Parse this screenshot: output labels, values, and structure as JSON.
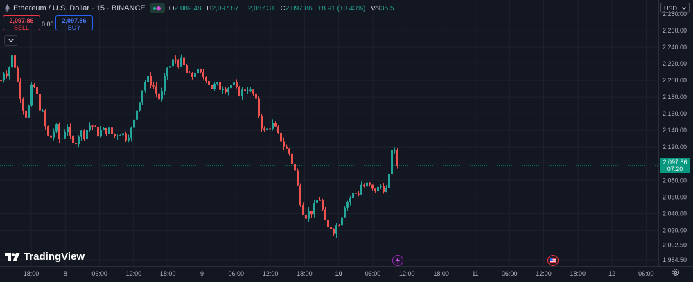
{
  "header": {
    "symbol": "Ethereum / U.S. Dollar · 15 · BINANCE",
    "o_label": "O",
    "o_value": "2,089.48",
    "h_label": "H",
    "h_value": "2,097.87",
    "l_label": "L",
    "l_value": "2,087.31",
    "c_label": "C",
    "c_value": "2,097.86",
    "change": "+8.91 (+0.43%)",
    "vol_label": "Vol",
    "vol_value": "35.5"
  },
  "trade": {
    "sell_price": "2,097.86",
    "sell_label": "SELL",
    "spread": "0.00",
    "buy_price": "2,097.86",
    "buy_label": "BUY"
  },
  "currency": "USD",
  "logo": "TradingView",
  "price_tag": {
    "price": "2,097.86",
    "countdown": "07:20"
  },
  "colors": {
    "up": "#26a69a",
    "down": "#ef5350",
    "background": "#131722",
    "accent": "#089981"
  },
  "icons": {
    "eth": "ethereum-icon",
    "tv": "tradingview-logo-icon",
    "settings": "gear-icon"
  },
  "chart_data": {
    "type": "candlestick",
    "interval": "15",
    "y_ticks": [
      2280,
      2260,
      2240,
      2220,
      2200,
      2180,
      2160,
      2140,
      2120,
      2100,
      2080,
      2060,
      2040,
      2020,
      2002.5,
      1984.5
    ],
    "y_tick_labels": [
      "2,280.00",
      "2,260.00",
      "2,240.00",
      "2,220.00",
      "2,200.00",
      "2,180.00",
      "2,160.00",
      "2,140.00",
      "2,120.00",
      "2,100.00",
      "2,080.00",
      "2,060.00",
      "2,040.00",
      "2,020.00",
      "2,002.50",
      "1,984.50"
    ],
    "x_tick_labels": [
      "18:00",
      "8",
      "06:00",
      "12:00",
      "18:00",
      "9",
      "06:00",
      "12:00",
      "18:00",
      "10",
      "06:00",
      "12:00",
      "18:00",
      "11",
      "06:00",
      "12:00",
      "18:00",
      "12",
      "06:00"
    ],
    "x_tick_bold": [
      false,
      false,
      false,
      false,
      false,
      false,
      false,
      false,
      false,
      true,
      false,
      false,
      false,
      false,
      false,
      false,
      false,
      false,
      false
    ],
    "last_price": 2097.86,
    "path": [
      [
        0,
        2200
      ],
      [
        5,
        2213
      ],
      [
        10,
        2207
      ],
      [
        15,
        2231
      ],
      [
        20,
        2218
      ],
      [
        25,
        2193
      ],
      [
        30,
        2175
      ],
      [
        35,
        2156
      ],
      [
        40,
        2168
      ],
      [
        45,
        2196
      ],
      [
        50,
        2188
      ],
      [
        55,
        2170
      ],
      [
        60,
        2160
      ],
      [
        65,
        2140
      ],
      [
        70,
        2127
      ],
      [
        75,
        2139
      ],
      [
        80,
        2143
      ],
      [
        85,
        2126
      ],
      [
        90,
        2134
      ],
      [
        95,
        2150
      ],
      [
        100,
        2129
      ],
      [
        105,
        2121
      ],
      [
        110,
        2133
      ],
      [
        115,
        2138
      ],
      [
        120,
        2135
      ],
      [
        125,
        2143
      ],
      [
        130,
        2148
      ],
      [
        135,
        2141
      ],
      [
        140,
        2136
      ],
      [
        145,
        2140
      ],
      [
        150,
        2139
      ],
      [
        155,
        2141
      ],
      [
        160,
        2136
      ],
      [
        165,
        2132
      ],
      [
        170,
        2139
      ],
      [
        175,
        2136
      ],
      [
        180,
        2132
      ],
      [
        185,
        2137
      ],
      [
        190,
        2143
      ],
      [
        195,
        2162
      ],
      [
        200,
        2178
      ],
      [
        205,
        2193
      ],
      [
        210,
        2203
      ],
      [
        215,
        2199
      ],
      [
        220,
        2193
      ],
      [
        225,
        2183
      ],
      [
        230,
        2175
      ],
      [
        235,
        2197
      ],
      [
        240,
        2216
      ],
      [
        245,
        2217
      ],
      [
        250,
        2227
      ],
      [
        255,
        2221
      ],
      [
        260,
        2223
      ],
      [
        265,
        2215
      ],
      [
        270,
        2205
      ],
      [
        275,
        2204
      ],
      [
        280,
        2211
      ],
      [
        285,
        2209
      ],
      [
        290,
        2205
      ],
      [
        295,
        2205
      ],
      [
        300,
        2197
      ],
      [
        305,
        2190
      ],
      [
        310,
        2196
      ],
      [
        315,
        2191
      ],
      [
        320,
        2193
      ],
      [
        325,
        2190
      ],
      [
        330,
        2194
      ],
      [
        335,
        2195
      ],
      [
        340,
        2188
      ],
      [
        345,
        2185
      ],
      [
        350,
        2188
      ],
      [
        355,
        2192
      ],
      [
        360,
        2186
      ],
      [
        365,
        2183
      ],
      [
        370,
        2167
      ],
      [
        375,
        2148
      ],
      [
        380,
        2138
      ],
      [
        385,
        2142
      ],
      [
        390,
        2148
      ],
      [
        395,
        2143
      ],
      [
        400,
        2133
      ],
      [
        405,
        2128
      ],
      [
        410,
        2118
      ],
      [
        415,
        2115
      ],
      [
        420,
        2102
      ],
      [
        425,
        2088
      ],
      [
        430,
        2062
      ],
      [
        435,
        2045
      ],
      [
        440,
        2038
      ],
      [
        445,
        2042
      ],
      [
        450,
        2043
      ],
      [
        455,
        2055
      ],
      [
        460,
        2058
      ],
      [
        465,
        2040
      ],
      [
        470,
        2020
      ],
      [
        475,
        2025
      ],
      [
        480,
        2020
      ],
      [
        485,
        2027
      ],
      [
        490,
        2032
      ],
      [
        495,
        2050
      ],
      [
        500,
        2055
      ],
      [
        505,
        2060
      ],
      [
        510,
        2065
      ],
      [
        515,
        2063
      ],
      [
        520,
        2075
      ],
      [
        525,
        2072
      ],
      [
        530,
        2076
      ],
      [
        535,
        2067
      ],
      [
        540,
        2069
      ],
      [
        545,
        2070
      ],
      [
        550,
        2075
      ],
      [
        555,
        2065
      ],
      [
        560,
        2083
      ],
      [
        565,
        2128
      ],
      [
        570,
        2102
      ],
      [
        575,
        2097.86
      ]
    ]
  }
}
